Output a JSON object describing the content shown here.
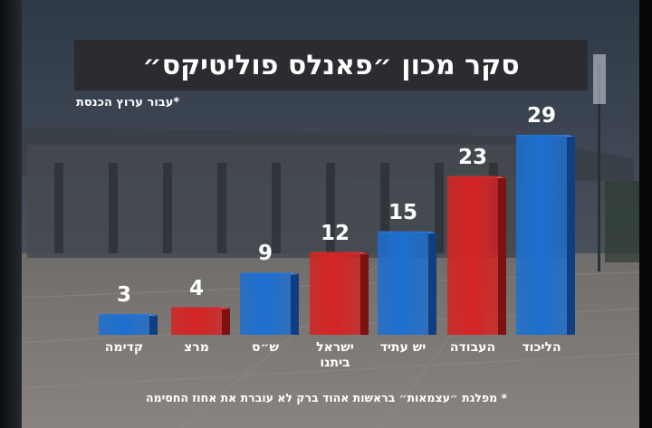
{
  "title": "סקר מכון ״פאנלס פוליטיקס״",
  "note_top": "*עבור ערוץ הכנסת",
  "footnote": "* מפלגת ״עצמאות״ בראשות אהוד ברק לא עוברת את אחוז החסימה",
  "colors": {
    "blue": "#1e6fcf",
    "red": "#d42424",
    "background": "#4d5560"
  },
  "chart_data": {
    "type": "bar",
    "title": "סקר מכון ״פאנלס פוליטיקס״",
    "xlabel": "",
    "ylabel": "",
    "ylim": [
      0,
      30
    ],
    "grid": false,
    "categories": [
      "קדימה",
      "מרצ",
      "ש״ס",
      "ישראל ביתנו",
      "יש עתיד",
      "העבודה",
      "הליכוד"
    ],
    "values": [
      3,
      4,
      9,
      12,
      15,
      23,
      29
    ],
    "bar_colors": [
      "blue",
      "red",
      "blue",
      "red",
      "blue",
      "red",
      "blue"
    ]
  }
}
